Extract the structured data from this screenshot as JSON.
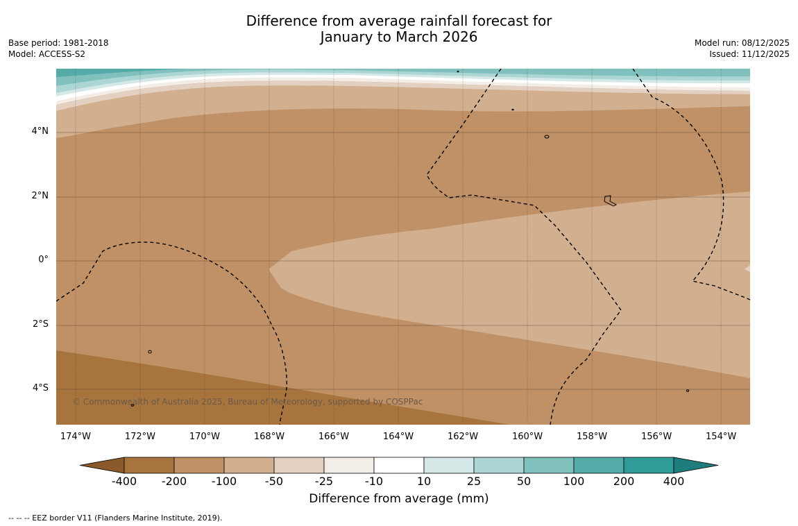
{
  "title": {
    "line1": "Difference from average rainfall forecast for",
    "line2": "January to March 2026"
  },
  "meta_left": {
    "base_period": "Base period: 1981-2018",
    "model": "Model: ACCESS-S2"
  },
  "meta_right": {
    "model_run": "Model run: 08/12/2025",
    "issued": "Issued: 11/12/2025"
  },
  "map": {
    "latitude_labels": [
      "4°N",
      "2°N",
      "0°",
      "2°S",
      "4°S"
    ],
    "latitude_values": [
      4,
      2,
      0,
      -2,
      -4
    ],
    "longitude_labels": [
      "174°W",
      "172°W",
      "170°W",
      "168°W",
      "166°W",
      "164°W",
      "162°W",
      "160°W",
      "158°W",
      "156°W",
      "154°W"
    ],
    "longitude_values": [
      -174,
      -172,
      -170,
      -168,
      -166,
      -164,
      -162,
      -160,
      -158,
      -156,
      -154
    ],
    "lon_range": [
      -174.6,
      -153.1
    ],
    "lat_range": [
      -5.1,
      6.0
    ],
    "copyright": "© Commonwealth of Australia 2025, Bureau of Meteorology, supported by COSPPac"
  },
  "colorbar": {
    "tick_labels": [
      "-400",
      "-200",
      "-100",
      "-50",
      "-25",
      "-10",
      "10",
      "25",
      "50",
      "100",
      "200",
      "400"
    ],
    "colors": {
      "lt_minus400": "#8b5a2b",
      "minus400_200": "#a8743e",
      "minus200_100": "#c09166",
      "minus100_50": "#d1af8f",
      "minus50_25": "#e3d0c0",
      "minus25_10": "#f3ede8",
      "minus10_10": "#ffffff",
      "p10_25": "#d4e9e7",
      "p25_50": "#abd6d4",
      "p50_100": "#80c0bd",
      "p100_200": "#56aaa8",
      "p200_400": "#319b98",
      "gt400": "#1f7d7b"
    },
    "title": "Difference from average (mm)"
  },
  "footnote": "--  --  -- EEZ border V11 (Flanders Marine Institute, 2019)."
}
